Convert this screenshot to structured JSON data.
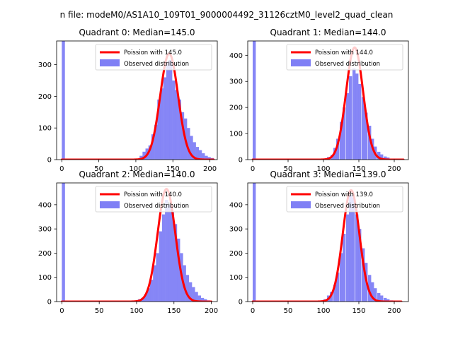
{
  "figure": {
    "suptitle": "n file: modeM0/AS1A10_109T01_9000004492_31126cztM0_level2_quad_clean"
  },
  "chart_data": [
    {
      "type": "bar",
      "title": "Quadrant 0: Median=145.0",
      "xlim": [
        -7,
        210
      ],
      "ylim": [
        0,
        375
      ],
      "xticks": [
        0,
        50,
        100,
        150,
        200
      ],
      "yticks": [
        0,
        100,
        200,
        300
      ],
      "legend_position": "top-right",
      "legend": [
        "Poission with 145.0",
        "Observed distribution"
      ],
      "colors": {
        "fit": "#ff0000",
        "hist": "#7f7ff5"
      },
      "histogram": {
        "name": "Observed distribution",
        "bin_width": 4.2,
        "bins": [
          {
            "x": 0,
            "count": 375
          },
          {
            "x": 105,
            "count": 12
          },
          {
            "x": 109,
            "count": 25
          },
          {
            "x": 113,
            "count": 35
          },
          {
            "x": 117,
            "count": 45
          },
          {
            "x": 121,
            "count": 80
          },
          {
            "x": 125,
            "count": 110
          },
          {
            "x": 129,
            "count": 190
          },
          {
            "x": 133,
            "count": 225
          },
          {
            "x": 137,
            "count": 260
          },
          {
            "x": 141,
            "count": 310
          },
          {
            "x": 145,
            "count": 315
          },
          {
            "x": 149,
            "count": 250
          },
          {
            "x": 153,
            "count": 220
          },
          {
            "x": 157,
            "count": 190
          },
          {
            "x": 161,
            "count": 150
          },
          {
            "x": 165,
            "count": 130
          },
          {
            "x": 169,
            "count": 100
          },
          {
            "x": 173,
            "count": 75
          },
          {
            "x": 177,
            "count": 55
          },
          {
            "x": 181,
            "count": 40
          },
          {
            "x": 185,
            "count": 30
          },
          {
            "x": 189,
            "count": 20
          },
          {
            "x": 193,
            "count": 12
          },
          {
            "x": 197,
            "count": 8
          },
          {
            "x": 201,
            "count": 5
          }
        ]
      },
      "poisson": {
        "name": "Poission with 145.0",
        "lambda": 145.0,
        "x_start": 0,
        "x_end": 205,
        "peak": 335
      }
    },
    {
      "type": "bar",
      "title": "Quadrant 1: Median=144.0",
      "xlim": [
        -7,
        220
      ],
      "ylim": [
        0,
        455
      ],
      "xticks": [
        0,
        50,
        100,
        150,
        200
      ],
      "yticks": [
        0,
        100,
        200,
        300,
        400
      ],
      "legend_position": "top-right",
      "legend": [
        "Poission with 144.0",
        "Observed distribution"
      ],
      "colors": {
        "fit": "#ff0000",
        "hist": "#7f7ff5"
      },
      "histogram": {
        "name": "Observed distribution",
        "bin_width": 4.4,
        "bins": [
          {
            "x": 0,
            "count": 455
          },
          {
            "x": 105,
            "count": 10
          },
          {
            "x": 110,
            "count": 18
          },
          {
            "x": 114,
            "count": 45
          },
          {
            "x": 118,
            "count": 80
          },
          {
            "x": 123,
            "count": 145
          },
          {
            "x": 127,
            "count": 200
          },
          {
            "x": 132,
            "count": 255
          },
          {
            "x": 136,
            "count": 320
          },
          {
            "x": 141,
            "count": 350
          },
          {
            "x": 145,
            "count": 330
          },
          {
            "x": 149,
            "count": 290
          },
          {
            "x": 154,
            "count": 240
          },
          {
            "x": 158,
            "count": 180
          },
          {
            "x": 163,
            "count": 130
          },
          {
            "x": 167,
            "count": 80
          },
          {
            "x": 171,
            "count": 50
          },
          {
            "x": 176,
            "count": 30
          },
          {
            "x": 180,
            "count": 20
          },
          {
            "x": 185,
            "count": 12
          },
          {
            "x": 189,
            "count": 8
          }
        ]
      },
      "poisson": {
        "name": "Poission with 144.0",
        "lambda": 144.0,
        "x_start": 0,
        "x_end": 213,
        "peak": 430
      }
    },
    {
      "type": "bar",
      "title": "Quadrant 2: Median=140.0",
      "xlim": [
        -7,
        208
      ],
      "ylim": [
        0,
        490
      ],
      "xticks": [
        0,
        50,
        100,
        150,
        200
      ],
      "yticks": [
        0,
        100,
        200,
        300,
        400
      ],
      "legend_position": "top-right",
      "legend": [
        "Poission with 140.0",
        "Observed distribution"
      ],
      "colors": {
        "fit": "#ff0000",
        "hist": "#7f7ff5"
      },
      "histogram": {
        "name": "Observed distribution",
        "bin_width": 4.2,
        "bins": [
          {
            "x": 0,
            "count": 490
          },
          {
            "x": 102,
            "count": 10
          },
          {
            "x": 106,
            "count": 15
          },
          {
            "x": 110,
            "count": 30
          },
          {
            "x": 114,
            "count": 55
          },
          {
            "x": 118,
            "count": 90
          },
          {
            "x": 122,
            "count": 150
          },
          {
            "x": 126,
            "count": 200
          },
          {
            "x": 130,
            "count": 290
          },
          {
            "x": 134,
            "count": 360
          },
          {
            "x": 138,
            "count": 420
          },
          {
            "x": 142,
            "count": 400
          },
          {
            "x": 146,
            "count": 370
          },
          {
            "x": 150,
            "count": 320
          },
          {
            "x": 154,
            "count": 260
          },
          {
            "x": 158,
            "count": 200
          },
          {
            "x": 162,
            "count": 150
          },
          {
            "x": 166,
            "count": 110
          },
          {
            "x": 170,
            "count": 80
          },
          {
            "x": 174,
            "count": 60
          },
          {
            "x": 178,
            "count": 40
          },
          {
            "x": 182,
            "count": 25
          },
          {
            "x": 186,
            "count": 15
          },
          {
            "x": 190,
            "count": 10
          },
          {
            "x": 194,
            "count": 5
          }
        ]
      },
      "poisson": {
        "name": "Poission with 140.0",
        "lambda": 140.0,
        "x_start": 0,
        "x_end": 200,
        "peak": 465
      }
    },
    {
      "type": "bar",
      "title": "Quadrant 3: Median=139.0",
      "xlim": [
        -7,
        220
      ],
      "ylim": [
        0,
        490
      ],
      "xticks": [
        0,
        50,
        100,
        150,
        200
      ],
      "yticks": [
        0,
        100,
        200,
        300,
        400
      ],
      "legend_position": "top-right",
      "legend": [
        "Poission with 139.0",
        "Observed distribution"
      ],
      "colors": {
        "fit": "#ff0000",
        "hist": "#7f7ff5"
      },
      "histogram": {
        "name": "Observed distribution",
        "bin_width": 4.4,
        "bins": [
          {
            "x": 0,
            "count": 490
          },
          {
            "x": 100,
            "count": 10
          },
          {
            "x": 105,
            "count": 25
          },
          {
            "x": 109,
            "count": 40
          },
          {
            "x": 114,
            "count": 70
          },
          {
            "x": 118,
            "count": 120
          },
          {
            "x": 123,
            "count": 200
          },
          {
            "x": 127,
            "count": 280
          },
          {
            "x": 132,
            "count": 360
          },
          {
            "x": 136,
            "count": 440
          },
          {
            "x": 140,
            "count": 430
          },
          {
            "x": 145,
            "count": 360
          },
          {
            "x": 149,
            "count": 300
          },
          {
            "x": 154,
            "count": 220
          },
          {
            "x": 158,
            "count": 160
          },
          {
            "x": 163,
            "count": 110
          },
          {
            "x": 167,
            "count": 80
          },
          {
            "x": 171,
            "count": 55
          },
          {
            "x": 176,
            "count": 35
          },
          {
            "x": 180,
            "count": 25
          },
          {
            "x": 185,
            "count": 15
          },
          {
            "x": 189,
            "count": 10
          },
          {
            "x": 194,
            "count": 5
          }
        ]
      },
      "poisson": {
        "name": "Poission with 139.0",
        "lambda": 139.0,
        "x_start": 0,
        "x_end": 210,
        "peak": 460
      }
    }
  ]
}
